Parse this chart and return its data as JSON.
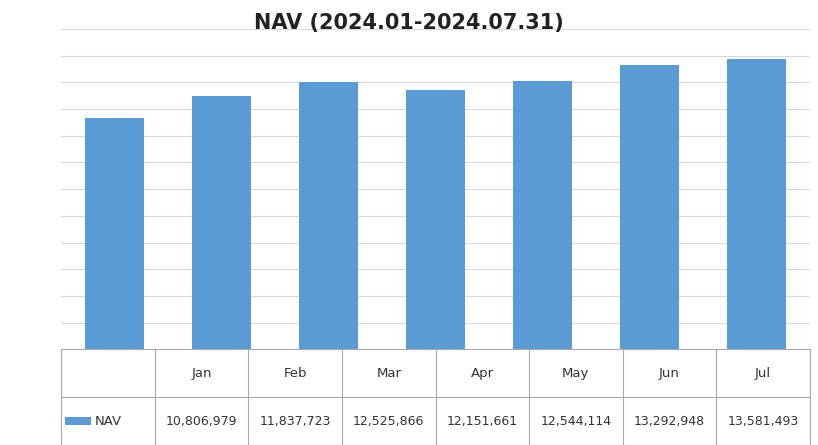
{
  "title": "NAV (2024.01-2024.07.31)",
  "categories": [
    "Jan",
    "Feb",
    "Mar",
    "Apr",
    "May",
    "Jun",
    "Jul"
  ],
  "values": [
    10806979,
    11837723,
    12525866,
    12151661,
    12544114,
    13292948,
    13581493
  ],
  "bar_color": "#5B9BD5",
  "background_color": "#FFFFFF",
  "title_fontsize": 15,
  "tick_fontsize": 10,
  "legend_label": "NAV",
  "legend_values": [
    "10,806,979",
    "11,837,723",
    "12,525,866",
    "12,151,661",
    "12,544,114",
    "13,292,948",
    "13,581,493"
  ],
  "ylim_min": 0,
  "ylim_max": 15000000,
  "grid_color": "#D9D9D9",
  "table_line_color": "#AAAAAA",
  "n_gridlines": 13
}
